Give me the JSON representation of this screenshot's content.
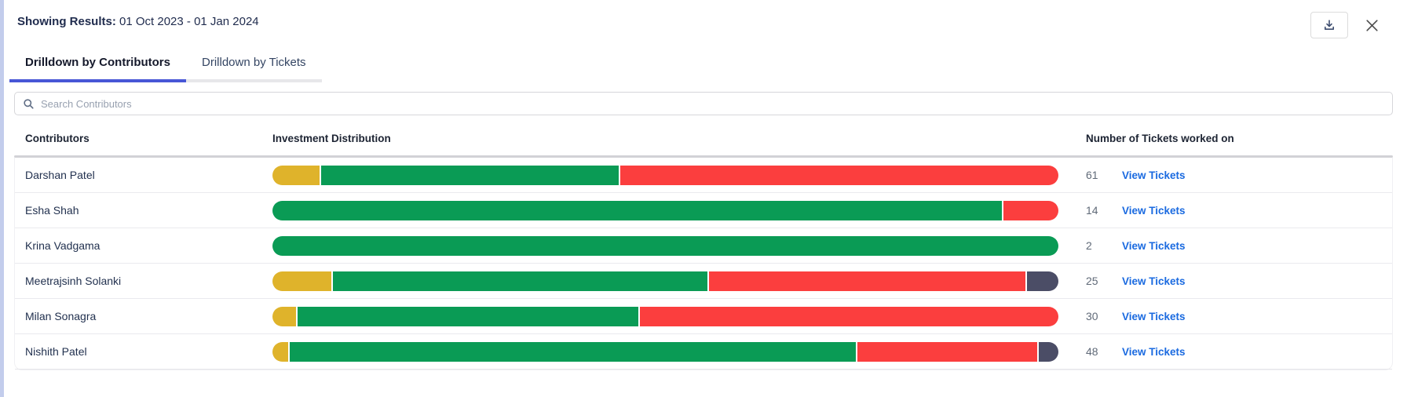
{
  "panel": {
    "left_strip_color": "#c3cdec"
  },
  "header": {
    "label": "Showing Results:",
    "value": "01 Oct 2023 - 01 Jan 2024"
  },
  "tabs": [
    {
      "label": "Drilldown by Contributors",
      "active": true
    },
    {
      "label": "Drilldown by Tickets",
      "active": false
    }
  ],
  "search": {
    "placeholder": "Search Contributors"
  },
  "colors": {
    "yellow": "#dfb32b",
    "green": "#0a9b55",
    "red": "#fb3e3e",
    "slate": "#4b4d66",
    "accent_tab": "#4756d6",
    "link_blue": "#1a6ae0"
  },
  "table": {
    "columns": [
      "Contributors",
      "Investment Distribution",
      "Number of Tickets worked on"
    ],
    "link_label": "View Tickets",
    "rows": [
      {
        "name": "Darshan Patel",
        "tickets": "61",
        "segments": [
          {
            "color": "yellow",
            "pct": 6
          },
          {
            "color": "green",
            "pct": 38
          },
          {
            "color": "red",
            "pct": 56
          }
        ]
      },
      {
        "name": "Esha Shah",
        "tickets": "14",
        "segments": [
          {
            "color": "green",
            "pct": 93
          },
          {
            "color": "red",
            "pct": 7
          }
        ]
      },
      {
        "name": "Krina Vadgama",
        "tickets": "2",
        "segments": [
          {
            "color": "green",
            "pct": 100
          }
        ]
      },
      {
        "name": "Meetrajsinh Solanki",
        "tickets": "25",
        "segments": [
          {
            "color": "yellow",
            "pct": 7.5
          },
          {
            "color": "green",
            "pct": 48
          },
          {
            "color": "red",
            "pct": 40.5
          },
          {
            "color": "slate",
            "pct": 4
          }
        ]
      },
      {
        "name": "Milan Sonagra",
        "tickets": "30",
        "segments": [
          {
            "color": "yellow",
            "pct": 3
          },
          {
            "color": "green",
            "pct": 43.5
          },
          {
            "color": "red",
            "pct": 53.5
          }
        ]
      },
      {
        "name": "Nishith Patel",
        "tickets": "48",
        "segments": [
          {
            "color": "yellow",
            "pct": 2
          },
          {
            "color": "green",
            "pct": 72.5
          },
          {
            "color": "red",
            "pct": 23
          },
          {
            "color": "slate",
            "pct": 2.5
          }
        ]
      }
    ]
  }
}
